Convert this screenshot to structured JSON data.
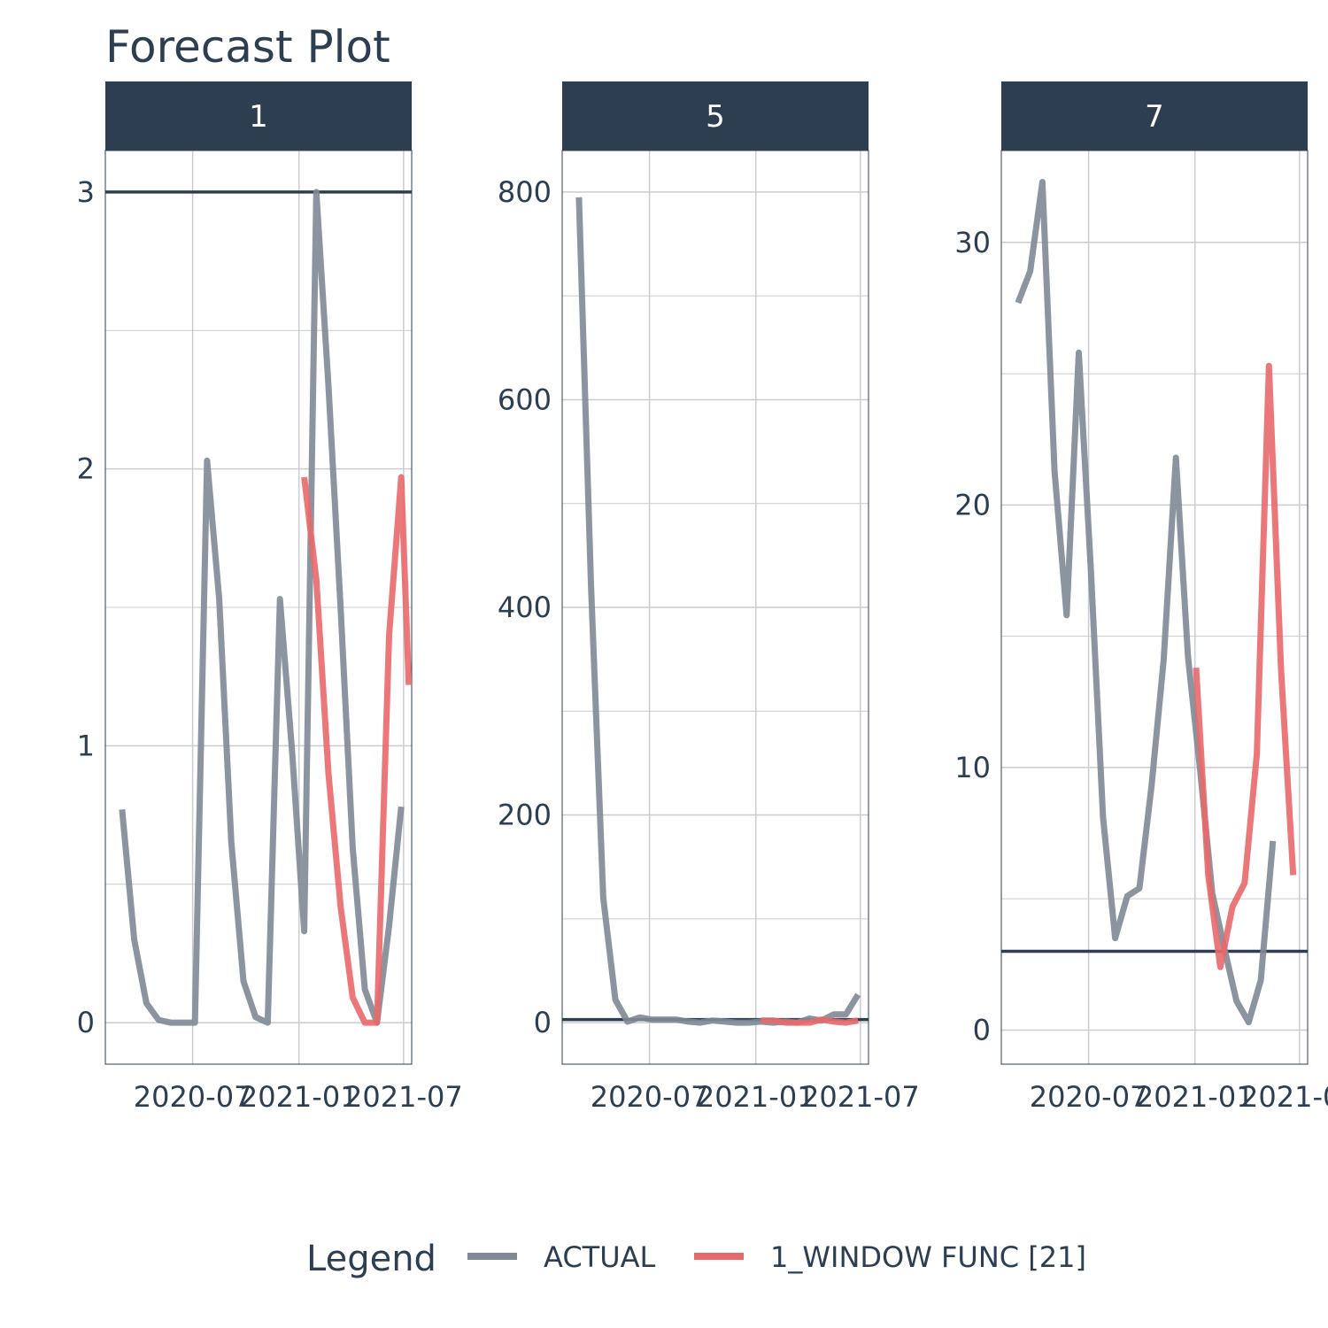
{
  "chart_data": {
    "type": "line",
    "title": "Forecast Plot",
    "colors": {
      "actual": "#808a95",
      "forecast": "#e8696c",
      "strip": "#2c3e50",
      "hline": "#2c3e50",
      "grid": "#c9ccd1",
      "axis_text": "#2c3e50"
    },
    "legend": {
      "title": "Legend",
      "position": "bottom",
      "entries": [
        "ACTUAL",
        "1_WINDOW FUNC [21]"
      ]
    },
    "x_ticks": [
      "2020-07",
      "2021-01",
      "2021-07"
    ],
    "panels": [
      {
        "label": "1",
        "xlim": [
          "2020-02-01",
          "2021-07-15"
        ],
        "ylim": [
          -0.15,
          3.15
        ],
        "y_ticks": [
          0,
          1,
          2,
          3
        ],
        "hline": 3,
        "series": [
          {
            "name": "ACTUAL",
            "points": [
              [
                "2020-03-01",
                0.77
              ],
              [
                "2020-03-22",
                0.3
              ],
              [
                "2020-04-12",
                0.07
              ],
              [
                "2020-05-03",
                0.01
              ],
              [
                "2020-05-24",
                0
              ],
              [
                "2020-06-14",
                0
              ],
              [
                "2020-07-05",
                0
              ],
              [
                "2020-07-26",
                2.03
              ],
              [
                "2020-08-16",
                1.53
              ],
              [
                "2020-09-06",
                0.65
              ],
              [
                "2020-09-27",
                0.15
              ],
              [
                "2020-10-18",
                0.02
              ],
              [
                "2020-11-08",
                0
              ],
              [
                "2020-11-29",
                1.53
              ],
              [
                "2020-12-20",
                0.98
              ],
              [
                "2021-01-10",
                0.33
              ],
              [
                "2021-01-31",
                3.0
              ],
              [
                "2021-02-21",
                2.3
              ],
              [
                "2021-03-14",
                1.5
              ],
              [
                "2021-04-04",
                0.63
              ],
              [
                "2021-04-25",
                0.12
              ],
              [
                "2021-05-16",
                0
              ],
              [
                "2021-06-06",
                0.35
              ],
              [
                "2021-06-27",
                0.78
              ]
            ]
          },
          {
            "name": "1_WINDOW FUNC [21]",
            "points": [
              [
                "2021-01-10",
                1.97
              ],
              [
                "2021-01-31",
                1.6
              ],
              [
                "2021-02-21",
                0.9
              ],
              [
                "2021-03-14",
                0.42
              ],
              [
                "2021-04-04",
                0.09
              ],
              [
                "2021-04-25",
                0
              ],
              [
                "2021-05-16",
                0
              ],
              [
                "2021-06-06",
                1.4
              ],
              [
                "2021-06-27",
                1.97
              ],
              [
                "2021-07-10",
                1.22
              ]
            ]
          }
        ]
      },
      {
        "label": "5",
        "xlim": [
          "2020-02-01",
          "2021-07-15"
        ],
        "ylim": [
          -40,
          840
        ],
        "y_ticks": [
          0,
          200,
          400,
          600,
          800
        ],
        "hline": 3,
        "series": [
          {
            "name": "ACTUAL",
            "points": [
              [
                "2020-03-01",
                795
              ],
              [
                "2020-03-22",
                420
              ],
              [
                "2020-04-12",
                120
              ],
              [
                "2020-05-03",
                22
              ],
              [
                "2020-05-24",
                1
              ],
              [
                "2020-06-14",
                5
              ],
              [
                "2020-07-05",
                3
              ],
              [
                "2020-07-26",
                3
              ],
              [
                "2020-08-16",
                3
              ],
              [
                "2020-09-06",
                1
              ],
              [
                "2020-09-27",
                0
              ],
              [
                "2020-10-18",
                2
              ],
              [
                "2020-11-08",
                1
              ],
              [
                "2020-11-29",
                0
              ],
              [
                "2020-12-20",
                0
              ],
              [
                "2021-01-10",
                1
              ],
              [
                "2021-01-31",
                0
              ],
              [
                "2021-02-21",
                1
              ],
              [
                "2021-03-14",
                0
              ],
              [
                "2021-04-04",
                4
              ],
              [
                "2021-04-25",
                2
              ],
              [
                "2021-05-16",
                8
              ],
              [
                "2021-06-06",
                8
              ],
              [
                "2021-06-27",
                27
              ]
            ]
          },
          {
            "name": "1_WINDOW FUNC [21]",
            "points": [
              [
                "2021-01-10",
                2
              ],
              [
                "2021-01-31",
                2
              ],
              [
                "2021-02-21",
                0
              ],
              [
                "2021-03-14",
                0
              ],
              [
                "2021-04-04",
                0
              ],
              [
                "2021-04-25",
                3
              ],
              [
                "2021-05-16",
                1
              ],
              [
                "2021-06-06",
                0
              ],
              [
                "2021-06-27",
                2
              ]
            ]
          }
        ]
      },
      {
        "label": "7",
        "xlim": [
          "2020-02-01",
          "2021-07-15"
        ],
        "ylim": [
          -1.3,
          33.5
        ],
        "y_ticks": [
          0,
          10,
          20,
          30
        ],
        "hline": 3,
        "series": [
          {
            "name": "ACTUAL",
            "points": [
              [
                "2020-03-01",
                27.7
              ],
              [
                "2020-03-22",
                28.9
              ],
              [
                "2020-04-12",
                32.3
              ],
              [
                "2020-05-03",
                21.3
              ],
              [
                "2020-05-24",
                15.8
              ],
              [
                "2020-06-14",
                25.8
              ],
              [
                "2020-07-05",
                17.5
              ],
              [
                "2020-07-26",
                8.1
              ],
              [
                "2020-08-16",
                3.5
              ],
              [
                "2020-09-06",
                5.1
              ],
              [
                "2020-09-27",
                5.4
              ],
              [
                "2020-10-18",
                9.3
              ],
              [
                "2020-11-08",
                14.1
              ],
              [
                "2020-11-29",
                21.8
              ],
              [
                "2020-12-20",
                14.2
              ],
              [
                "2021-01-10",
                9.9
              ],
              [
                "2021-01-31",
                5.2
              ],
              [
                "2021-02-21",
                3.1
              ],
              [
                "2021-03-14",
                1.1
              ],
              [
                "2021-04-04",
                0.3
              ],
              [
                "2021-04-25",
                1.9
              ],
              [
                "2021-05-16",
                7.2
              ]
            ]
          },
          {
            "name": "1_WINDOW FUNC [21]",
            "points": [
              [
                "2021-01-03",
                13.8
              ],
              [
                "2021-01-24",
                5.9
              ],
              [
                "2021-02-14",
                2.4
              ],
              [
                "2021-03-07",
                4.7
              ],
              [
                "2021-03-28",
                5.6
              ],
              [
                "2021-04-18",
                10.5
              ],
              [
                "2021-05-09",
                25.3
              ],
              [
                "2021-05-30",
                13.7
              ],
              [
                "2021-06-20",
                5.9
              ]
            ]
          }
        ]
      }
    ]
  }
}
